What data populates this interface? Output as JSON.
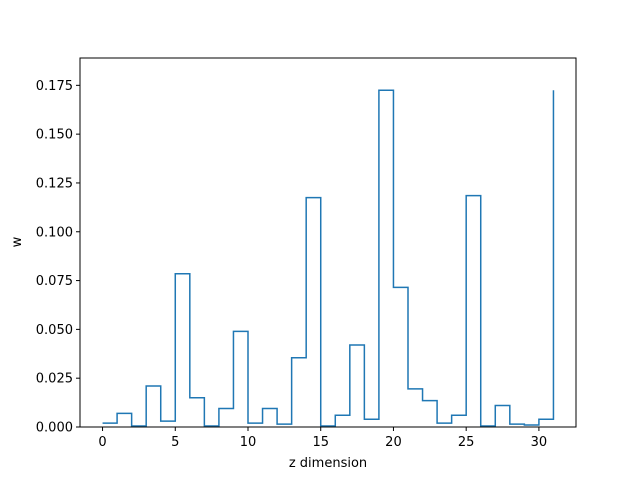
{
  "chart_data": {
    "type": "line",
    "style": "step-post",
    "title": "",
    "xlabel": "z dimension",
    "ylabel": "w",
    "xlim": [
      -1.55,
      32.55
    ],
    "ylim": [
      0,
      0.189
    ],
    "xticks": [
      0,
      5,
      10,
      15,
      20,
      25,
      30
    ],
    "yticks": [
      "0.000",
      "0.025",
      "0.050",
      "0.075",
      "0.100",
      "0.125",
      "0.150",
      "0.175"
    ],
    "grid": false,
    "legend": "none",
    "series": [
      {
        "color": "#1f77b4",
        "x": [
          0,
          1,
          2,
          3,
          4,
          5,
          6,
          7,
          8,
          9,
          10,
          11,
          12,
          13,
          14,
          15,
          16,
          17,
          18,
          19,
          20,
          21,
          22,
          23,
          24,
          25,
          26,
          27,
          28,
          29,
          30,
          31
        ],
        "y": [
          0.002,
          0.007,
          0.0005,
          0.021,
          0.003,
          0.0785,
          0.015,
          0.0005,
          0.0095,
          0.049,
          0.002,
          0.0095,
          0.0015,
          0.0355,
          0.1175,
          0.0005,
          0.006,
          0.042,
          0.004,
          0.1725,
          0.0715,
          0.0195,
          0.0135,
          0.002,
          0.006,
          0.1185,
          0.0005,
          0.011,
          0.0015,
          0.001,
          0.004,
          0.1725
        ]
      }
    ]
  }
}
